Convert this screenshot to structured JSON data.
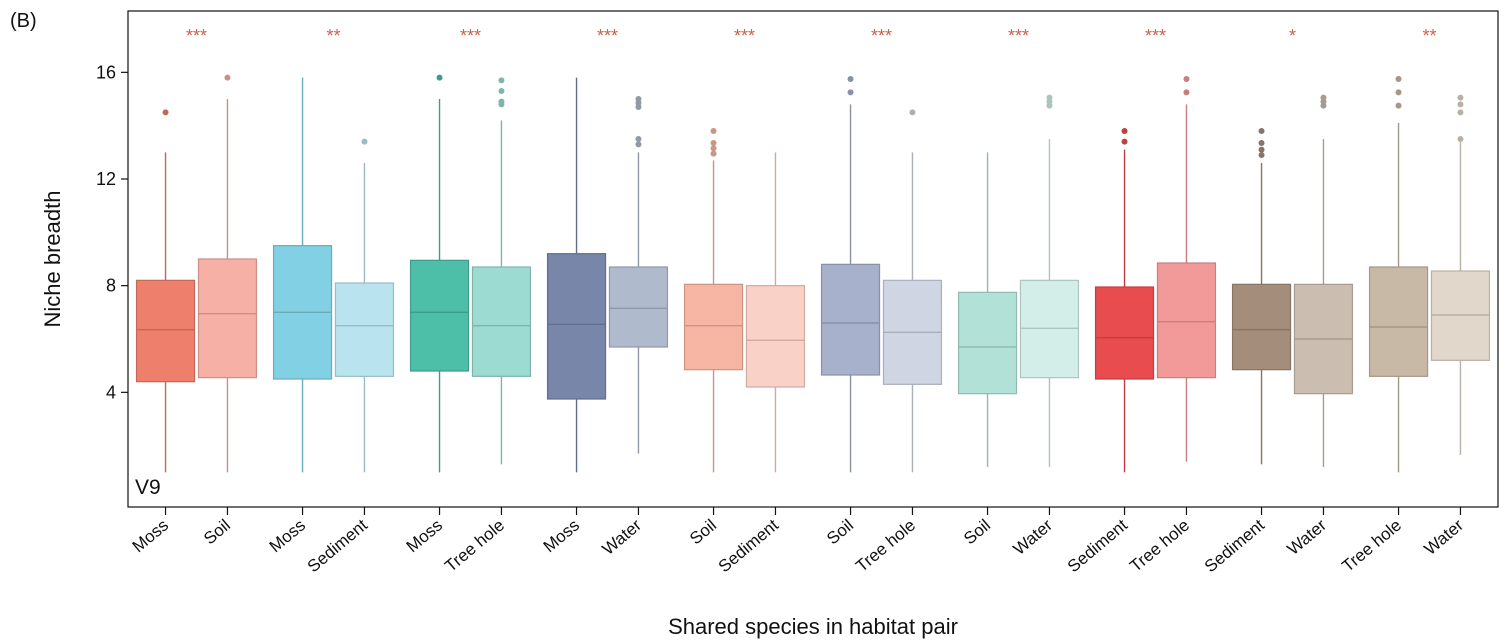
{
  "panel_label": "(B)",
  "chart_data": {
    "type": "box",
    "title": "",
    "xlabel": "Shared species in habitat pair",
    "ylabel": "Niche breadth",
    "ylim": [
      -0.3,
      18.3
    ],
    "yticks": [
      4,
      8,
      12,
      16
    ],
    "annotation": "V9",
    "significance_color": "#d0604a",
    "groups": [
      {
        "significance": "***",
        "boxes": [
          {
            "category": "Moss",
            "color": "#ee7f6c",
            "min": 1.0,
            "q1": 4.4,
            "median": 6.35,
            "q3": 8.2,
            "max": 13.0,
            "outliers": [
              14.5
            ]
          },
          {
            "category": "Soil",
            "color": "#f6b0a6",
            "min": 1.0,
            "q1": 4.55,
            "median": 6.95,
            "q3": 9.0,
            "max": 15.0,
            "outliers": [
              15.8
            ]
          }
        ]
      },
      {
        "significance": "**",
        "boxes": [
          {
            "category": "Moss",
            "color": "#82d0e3",
            "min": 1.0,
            "q1": 4.5,
            "median": 7.0,
            "q3": 9.5,
            "max": 15.8,
            "outliers": []
          },
          {
            "category": "Sediment",
            "color": "#b9e4ef",
            "min": 1.0,
            "q1": 4.6,
            "median": 6.5,
            "q3": 8.1,
            "max": 12.6,
            "outliers": [
              13.4
            ]
          }
        ]
      },
      {
        "significance": "***",
        "boxes": [
          {
            "category": "Moss",
            "color": "#4dbea7",
            "min": 1.0,
            "q1": 4.8,
            "median": 7.0,
            "q3": 8.95,
            "max": 15.0,
            "outliers": [
              15.8
            ]
          },
          {
            "category": "Tree hole",
            "color": "#9cdbd1",
            "min": 1.3,
            "q1": 4.6,
            "median": 6.5,
            "q3": 8.7,
            "max": 14.2,
            "outliers": [
              14.8,
              14.9,
              15.3,
              15.7
            ]
          }
        ]
      },
      {
        "significance": "***",
        "boxes": [
          {
            "category": "Moss",
            "color": "#7786a9",
            "min": 1.0,
            "q1": 3.75,
            "median": 6.55,
            "q3": 9.2,
            "max": 15.8,
            "outliers": []
          },
          {
            "category": "Water",
            "color": "#b0bacd",
            "min": 1.7,
            "q1": 5.7,
            "median": 7.15,
            "q3": 8.7,
            "max": 13.0,
            "outliers": [
              13.3,
              13.5,
              14.7,
              14.85,
              15.0
            ]
          }
        ]
      },
      {
        "significance": "***",
        "boxes": [
          {
            "category": "Soil",
            "color": "#f7b5a4",
            "min": 1.0,
            "q1": 4.85,
            "median": 6.5,
            "q3": 8.05,
            "max": 12.7,
            "outliers": [
              12.95,
              13.15,
              13.35,
              13.8
            ]
          },
          {
            "category": "Sediment",
            "color": "#fad1c7",
            "min": 1.0,
            "q1": 4.2,
            "median": 5.95,
            "q3": 8.0,
            "max": 13.0,
            "outliers": []
          }
        ]
      },
      {
        "significance": "***",
        "boxes": [
          {
            "category": "Soil",
            "color": "#a7b1cb",
            "min": 1.0,
            "q1": 4.65,
            "median": 6.6,
            "q3": 8.8,
            "max": 14.8,
            "outliers": [
              15.25,
              15.75
            ]
          },
          {
            "category": "Tree hole",
            "color": "#d0d5e3",
            "min": 1.0,
            "q1": 4.3,
            "median": 6.25,
            "q3": 8.2,
            "max": 13.0,
            "outliers": [
              14.5
            ]
          }
        ]
      },
      {
        "significance": "***",
        "boxes": [
          {
            "category": "Soil",
            "color": "#b2e2d7",
            "min": 1.2,
            "q1": 3.95,
            "median": 5.7,
            "q3": 7.75,
            "max": 13.0,
            "outliers": []
          },
          {
            "category": "Water",
            "color": "#d3eee8",
            "min": 1.2,
            "q1": 4.55,
            "median": 6.4,
            "q3": 8.2,
            "max": 13.5,
            "outliers": [
              14.75,
              14.9,
              15.05
            ]
          }
        ]
      },
      {
        "significance": "***",
        "boxes": [
          {
            "category": "Sediment",
            "color": "#e84c4f",
            "min": 1.0,
            "q1": 4.5,
            "median": 6.05,
            "q3": 7.95,
            "max": 13.1,
            "outliers": [
              13.4,
              13.8
            ]
          },
          {
            "category": "Tree hole",
            "color": "#f29a9a",
            "min": 1.4,
            "q1": 4.55,
            "median": 6.65,
            "q3": 8.85,
            "max": 14.8,
            "outliers": [
              15.25,
              15.75
            ]
          }
        ]
      },
      {
        "significance": "*",
        "boxes": [
          {
            "category": "Sediment",
            "color": "#a58d7b",
            "min": 1.3,
            "q1": 4.85,
            "median": 6.35,
            "q3": 8.05,
            "max": 12.6,
            "outliers": [
              12.9,
              13.1,
              13.35,
              13.8
            ]
          },
          {
            "category": "Water",
            "color": "#cbbdb0",
            "min": 1.2,
            "q1": 3.95,
            "median": 6.0,
            "q3": 8.05,
            "max": 13.5,
            "outliers": [
              14.75,
              14.9,
              15.05
            ]
          }
        ]
      },
      {
        "significance": "**",
        "boxes": [
          {
            "category": "Tree hole",
            "color": "#c8b8a6",
            "min": 1.0,
            "q1": 4.6,
            "median": 6.45,
            "q3": 8.7,
            "max": 14.1,
            "outliers": [
              14.75,
              15.25,
              15.75
            ]
          },
          {
            "category": "Water",
            "color": "#e2d7cb",
            "min": 1.65,
            "q1": 5.2,
            "median": 6.9,
            "q3": 8.55,
            "max": 13.4,
            "outliers": [
              13.5,
              14.5,
              14.8,
              15.05
            ]
          }
        ]
      }
    ]
  }
}
